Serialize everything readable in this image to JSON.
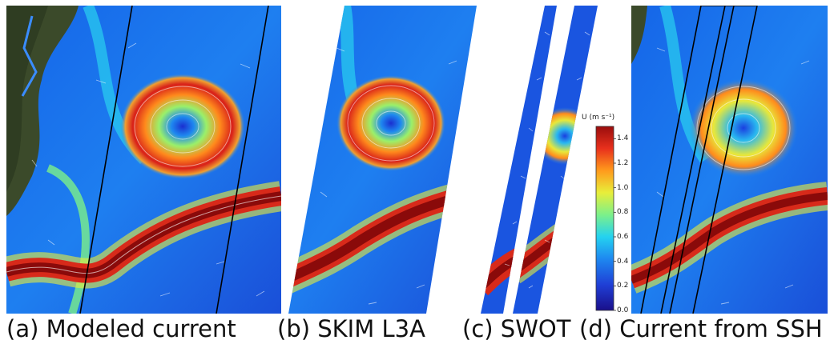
{
  "panels": [
    {
      "id": "a",
      "caption": "(a) Modeled current"
    },
    {
      "id": "b",
      "caption": "(b) SKIM L3A"
    },
    {
      "id": "c",
      "caption": "(c) SWOT"
    },
    {
      "id": "d",
      "caption": "(d) Current from SSH"
    }
  ],
  "colorbar": {
    "title": "U (m s⁻¹)",
    "ticks": [
      "1.4",
      "1.2",
      "1.0",
      "0.8",
      "0.6",
      "0.4",
      "0.2",
      "0.0"
    ],
    "min": 0.0,
    "max": 1.5,
    "colors": [
      "#1a0f8a",
      "#1f3fd6",
      "#1e88f0",
      "#24d2f0",
      "#7cf08a",
      "#e8ee3a",
      "#ff9a1c",
      "#e8301c",
      "#9a0d0d"
    ]
  }
}
